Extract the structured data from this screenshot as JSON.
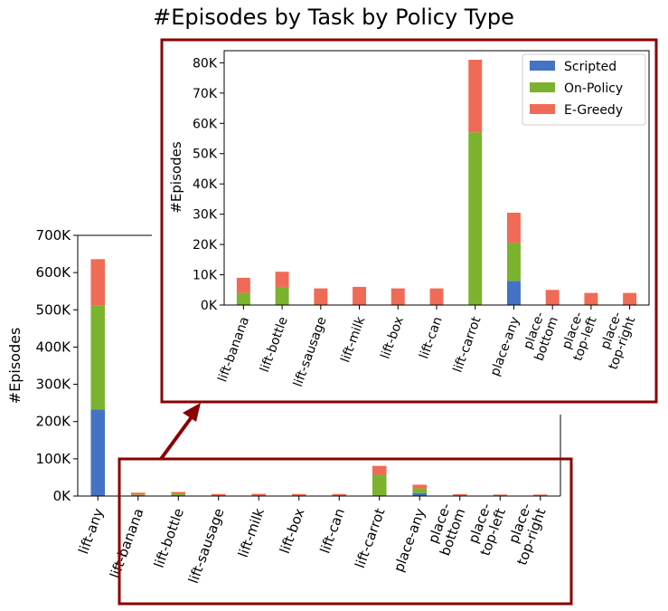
{
  "title": "#Episodes by Task by Policy Type",
  "colors": {
    "Scripted": "#4472c4",
    "On-Policy": "#7bb32e",
    "E-Greedy": "#f06b55",
    "highlight": "#8b0000"
  },
  "chart_data": [
    {
      "type": "bar",
      "stacked": true,
      "title": "#Episodes by Task by Policy Type",
      "xlabel": "",
      "ylabel": "#Episodes",
      "ylim": [
        0,
        700000
      ],
      "yticks": [
        0,
        100000,
        200000,
        300000,
        400000,
        500000,
        600000,
        700000
      ],
      "ytick_labels": [
        "0K",
        "100K",
        "200K",
        "300K",
        "400K",
        "500K",
        "600K",
        "700K"
      ],
      "categories": [
        [
          "lift-any"
        ],
        [
          "lift-banana"
        ],
        [
          "lift-bottle"
        ],
        [
          "lift-sausage"
        ],
        [
          "lift-milk"
        ],
        [
          "lift-box"
        ],
        [
          "lift-can"
        ],
        [
          "lift-carrot"
        ],
        [
          "place-any"
        ],
        [
          "place-",
          "bottom"
        ],
        [
          "place-",
          "top-left"
        ],
        [
          "place-",
          "top-right"
        ]
      ],
      "series": [
        {
          "name": "Scripted",
          "values": [
            232000,
            0,
            0,
            0,
            0,
            0,
            0,
            0,
            8000,
            0,
            0,
            0
          ]
        },
        {
          "name": "On-Policy",
          "values": [
            280000,
            4000,
            6000,
            0,
            0,
            0,
            0,
            57000,
            12500,
            0,
            0,
            0
          ]
        },
        {
          "name": "E-Greedy",
          "values": [
            124000,
            5000,
            5000,
            5500,
            6000,
            5500,
            5500,
            24000,
            10000,
            5000,
            4000,
            4000
          ]
        }
      ],
      "legend": "none"
    },
    {
      "type": "bar",
      "stacked": true,
      "title": "",
      "xlabel": "",
      "ylabel": "#Episodes",
      "ylim": [
        0,
        84000
      ],
      "yticks": [
        0,
        10000,
        20000,
        30000,
        40000,
        50000,
        60000,
        70000,
        80000
      ],
      "ytick_labels": [
        "0K",
        "10K",
        "20K",
        "30K",
        "40K",
        "50K",
        "60K",
        "70K",
        "80K"
      ],
      "categories": [
        [
          "lift-banana"
        ],
        [
          "lift-bottle"
        ],
        [
          "lift-sausage"
        ],
        [
          "lift-milk"
        ],
        [
          "lift-box"
        ],
        [
          "lift-can"
        ],
        [
          "lift-carrot"
        ],
        [
          "place-any"
        ],
        [
          "place-",
          "bottom"
        ],
        [
          "place-",
          "top-left"
        ],
        [
          "place-",
          "top-right"
        ]
      ],
      "series": [
        {
          "name": "Scripted",
          "values": [
            0,
            0,
            0,
            0,
            0,
            0,
            0,
            8000,
            0,
            0,
            0
          ]
        },
        {
          "name": "On-Policy",
          "values": [
            4000,
            6000,
            0,
            0,
            0,
            0,
            57000,
            12500,
            0,
            0,
            0
          ]
        },
        {
          "name": "E-Greedy",
          "values": [
            5000,
            5000,
            5500,
            6000,
            5500,
            5500,
            24000,
            10000,
            5000,
            4000,
            4000
          ]
        }
      ],
      "legend": "top-right"
    }
  ]
}
